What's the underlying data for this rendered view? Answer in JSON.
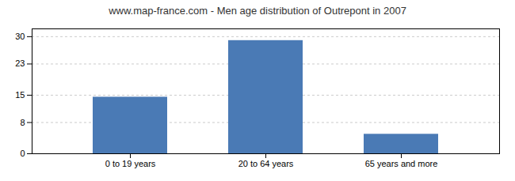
{
  "chart_data": {
    "type": "bar",
    "title": "www.map-france.com - Men age distribution of Outrepont in 2007",
    "categories": [
      "0 to 19 years",
      "20 to 64 years",
      "65 years and more"
    ],
    "values": [
      14.5,
      29.0,
      5.0
    ],
    "color": "#4a7ab5",
    "ylim": [
      0,
      32
    ],
    "yticks": [
      0,
      8,
      15,
      23,
      30
    ],
    "grid": true
  }
}
